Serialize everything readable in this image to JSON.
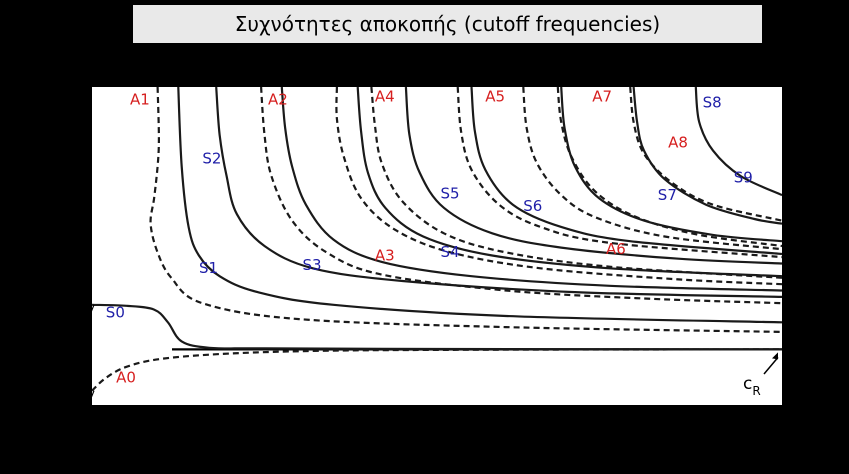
{
  "title": "Συχνότητες αποκοπής (cutoff frequencies)",
  "colors": {
    "background": "#000000",
    "plot_area": "#ffffff",
    "title_box": "#e9e9e9",
    "symmetric": "#1f1fa8",
    "antisymmetric": "#d61f1f",
    "curve": "#1a1a1a",
    "rayleigh": "#000000"
  },
  "chart_data": {
    "type": "line",
    "title": "Συχνότητες αποκοπής (cutoff frequencies)",
    "xlabel": "",
    "ylabel": "",
    "xlim": [
      0,
      10
    ],
    "ylim": [
      0,
      10
    ],
    "x_ticks": 10,
    "y_ticks": 9,
    "grid": false,
    "style_legend": {
      "symmetric": "solid",
      "antisymmetric": "dashed"
    },
    "asymptote": {
      "label_main": "c",
      "label_sub": "R",
      "y": 1.75
    },
    "series": [
      {
        "name": "S0",
        "family": "symmetric",
        "values": [
          [
            0,
            3.15
          ],
          [
            0.5,
            3.12
          ],
          [
            0.9,
            3.0
          ],
          [
            1.1,
            2.6
          ],
          [
            1.3,
            2.0
          ],
          [
            1.7,
            1.8
          ],
          [
            2.5,
            1.78
          ],
          [
            5,
            1.76
          ],
          [
            10,
            1.75
          ]
        ]
      },
      {
        "name": "A0",
        "family": "antisymmetric",
        "values": [
          [
            0,
            0.45
          ],
          [
            0.2,
            0.85
          ],
          [
            0.5,
            1.2
          ],
          [
            1,
            1.45
          ],
          [
            2,
            1.62
          ],
          [
            3.5,
            1.71
          ],
          [
            6,
            1.74
          ],
          [
            10,
            1.75
          ]
        ]
      },
      {
        "name": "S1",
        "family": "symmetric",
        "values": [
          [
            1.25,
            10
          ],
          [
            1.3,
            7.5
          ],
          [
            1.4,
            5.6
          ],
          [
            1.55,
            4.7
          ],
          [
            1.85,
            4.05
          ],
          [
            2.4,
            3.55
          ],
          [
            3.5,
            3.15
          ],
          [
            6,
            2.8
          ],
          [
            10,
            2.6
          ]
        ]
      },
      {
        "name": "A1",
        "family": "antisymmetric",
        "values": [
          [
            0.95,
            10
          ],
          [
            0.97,
            8.4
          ],
          [
            0.95,
            7.5
          ],
          [
            0.9,
            6.5
          ],
          [
            0.85,
            5.7
          ],
          [
            0.95,
            4.8
          ],
          [
            1.15,
            4.0
          ],
          [
            1.6,
            3.2
          ],
          [
            3,
            2.7
          ],
          [
            6,
            2.45
          ],
          [
            10,
            2.3
          ]
        ]
      },
      {
        "name": "S2",
        "family": "symmetric",
        "values": [
          [
            1.8,
            10
          ],
          [
            1.85,
            8.5
          ],
          [
            1.95,
            7.2
          ],
          [
            2.1,
            6.0
          ],
          [
            2.5,
            5.0
          ],
          [
            3.2,
            4.3
          ],
          [
            4.5,
            3.9
          ],
          [
            7,
            3.55
          ],
          [
            10,
            3.4
          ]
        ]
      },
      {
        "name": "A2",
        "family": "antisymmetric",
        "values": [
          [
            2.45,
            10
          ],
          [
            2.5,
            8.5
          ],
          [
            2.6,
            7.2
          ],
          [
            2.9,
            5.8
          ],
          [
            3.4,
            4.8
          ],
          [
            4.2,
            4.1
          ],
          [
            6,
            3.6
          ],
          [
            8,
            3.35
          ],
          [
            10,
            3.2
          ]
        ]
      },
      {
        "name": "S3",
        "family": "symmetric",
        "values": [
          [
            2.75,
            10
          ],
          [
            2.8,
            8.7
          ],
          [
            2.9,
            7.5
          ],
          [
            3.1,
            6.3
          ],
          [
            3.5,
            5.2
          ],
          [
            4.2,
            4.5
          ],
          [
            5.5,
            4.05
          ],
          [
            7.5,
            3.75
          ],
          [
            10,
            3.6
          ]
        ]
      },
      {
        "name": "A3",
        "family": "antisymmetric",
        "values": [
          [
            3.55,
            10
          ],
          [
            3.55,
            9.0
          ],
          [
            3.65,
            7.8
          ],
          [
            3.9,
            6.5
          ],
          [
            4.4,
            5.5
          ],
          [
            5.2,
            4.8
          ],
          [
            6.5,
            4.3
          ],
          [
            8.5,
            3.95
          ],
          [
            10,
            3.8
          ]
        ]
      },
      {
        "name": "A4",
        "family": "antisymmetric",
        "values": [
          [
            4.05,
            10
          ],
          [
            4.1,
            8.8
          ],
          [
            4.2,
            7.6
          ],
          [
            4.5,
            6.4
          ],
          [
            5.1,
            5.4
          ],
          [
            6,
            4.8
          ],
          [
            7.5,
            4.35
          ],
          [
            10,
            4.0
          ]
        ]
      },
      {
        "name": "S4",
        "family": "symmetric",
        "values": [
          [
            3.85,
            10
          ],
          [
            3.9,
            8.6
          ],
          [
            4.0,
            7.3
          ],
          [
            4.25,
            6.2
          ],
          [
            4.8,
            5.3
          ],
          [
            5.8,
            4.7
          ],
          [
            7.5,
            4.3
          ],
          [
            10,
            4.05
          ]
        ]
      },
      {
        "name": "S5",
        "family": "symmetric",
        "values": [
          [
            4.55,
            10
          ],
          [
            4.6,
            8.5
          ],
          [
            4.75,
            7.3
          ],
          [
            5.1,
            6.2
          ],
          [
            5.8,
            5.4
          ],
          [
            6.8,
            4.95
          ],
          [
            8.5,
            4.6
          ],
          [
            10,
            4.45
          ]
        ]
      },
      {
        "name": "A5",
        "family": "antisymmetric",
        "values": [
          [
            5.3,
            10
          ],
          [
            5.35,
            8.6
          ],
          [
            5.5,
            7.4
          ],
          [
            5.9,
            6.3
          ],
          [
            6.5,
            5.6
          ],
          [
            7.5,
            5.1
          ],
          [
            10,
            4.65
          ]
        ]
      },
      {
        "name": "S6",
        "family": "symmetric",
        "values": [
          [
            5.5,
            10
          ],
          [
            5.55,
            8.6
          ],
          [
            5.7,
            7.4
          ],
          [
            6.1,
            6.3
          ],
          [
            6.8,
            5.6
          ],
          [
            7.8,
            5.15
          ],
          [
            10,
            4.75
          ]
        ]
      },
      {
        "name": "A6",
        "family": "antisymmetric",
        "values": [
          [
            6.25,
            10
          ],
          [
            6.3,
            8.7
          ],
          [
            6.45,
            7.6
          ],
          [
            6.8,
            6.6
          ],
          [
            7.3,
            5.9
          ],
          [
            8.3,
            5.3
          ],
          [
            10,
            4.9
          ]
        ]
      },
      {
        "name": "A7",
        "family": "antisymmetric",
        "values": [
          [
            6.75,
            10
          ],
          [
            6.8,
            8.9
          ],
          [
            6.95,
            7.8
          ],
          [
            7.3,
            6.7
          ],
          [
            7.9,
            5.9
          ],
          [
            8.8,
            5.35
          ],
          [
            10,
            5.0
          ]
        ]
      },
      {
        "name": "S7",
        "family": "symmetric",
        "values": [
          [
            6.8,
            10
          ],
          [
            6.85,
            8.7
          ],
          [
            7.0,
            7.5
          ],
          [
            7.35,
            6.5
          ],
          [
            8.0,
            5.8
          ],
          [
            9,
            5.35
          ],
          [
            10,
            5.15
          ]
        ]
      },
      {
        "name": "A8",
        "family": "antisymmetric",
        "values": [
          [
            7.8,
            10
          ],
          [
            7.85,
            8.9
          ],
          [
            8.0,
            7.9
          ],
          [
            8.4,
            7.0
          ],
          [
            9.0,
            6.3
          ],
          [
            10,
            5.8
          ]
        ]
      },
      {
        "name": "S8",
        "family": "symmetric",
        "values": [
          [
            7.85,
            10
          ],
          [
            7.9,
            8.9
          ],
          [
            8.0,
            8.0
          ],
          [
            8.3,
            7.1
          ],
          [
            8.9,
            6.3
          ],
          [
            9.6,
            5.85
          ],
          [
            10,
            5.7
          ]
        ]
      },
      {
        "name": "S9",
        "family": "symmetric",
        "values": [
          [
            8.75,
            10
          ],
          [
            8.8,
            8.9
          ],
          [
            9.0,
            8.0
          ],
          [
            9.4,
            7.2
          ],
          [
            10,
            6.6
          ]
        ]
      }
    ],
    "mode_labels": [
      {
        "text": "A1",
        "family": "antisymmetric",
        "x": 0.55,
        "y": 9.45
      },
      {
        "text": "A2",
        "family": "antisymmetric",
        "x": 2.55,
        "y": 9.45
      },
      {
        "text": "A4",
        "family": "antisymmetric",
        "x": 4.1,
        "y": 9.55
      },
      {
        "text": "A5",
        "family": "antisymmetric",
        "x": 5.7,
        "y": 9.55
      },
      {
        "text": "A7",
        "family": "antisymmetric",
        "x": 7.25,
        "y": 9.55
      },
      {
        "text": "S8",
        "family": "symmetric",
        "x": 8.85,
        "y": 9.35
      },
      {
        "text": "S2",
        "family": "symmetric",
        "x": 1.6,
        "y": 7.6
      },
      {
        "text": "A8",
        "family": "antisymmetric",
        "x": 8.35,
        "y": 8.1
      },
      {
        "text": "S9",
        "family": "symmetric",
        "x": 9.3,
        "y": 7.0
      },
      {
        "text": "S5",
        "family": "symmetric",
        "x": 5.05,
        "y": 6.5
      },
      {
        "text": "S7",
        "family": "symmetric",
        "x": 8.2,
        "y": 6.45
      },
      {
        "text": "S6",
        "family": "symmetric",
        "x": 6.25,
        "y": 6.1
      },
      {
        "text": "A6",
        "family": "antisymmetric",
        "x": 7.45,
        "y": 4.75
      },
      {
        "text": "S4",
        "family": "symmetric",
        "x": 5.05,
        "y": 4.65
      },
      {
        "text": "A3",
        "family": "antisymmetric",
        "x": 4.1,
        "y": 4.55
      },
      {
        "text": "S3",
        "family": "symmetric",
        "x": 3.05,
        "y": 4.25
      },
      {
        "text": "S1",
        "family": "symmetric",
        "x": 1.55,
        "y": 4.15
      },
      {
        "text": "S0",
        "family": "symmetric",
        "x": 0.2,
        "y": 2.75
      },
      {
        "text": "A0",
        "family": "antisymmetric",
        "x": 0.35,
        "y": 0.7
      }
    ]
  }
}
